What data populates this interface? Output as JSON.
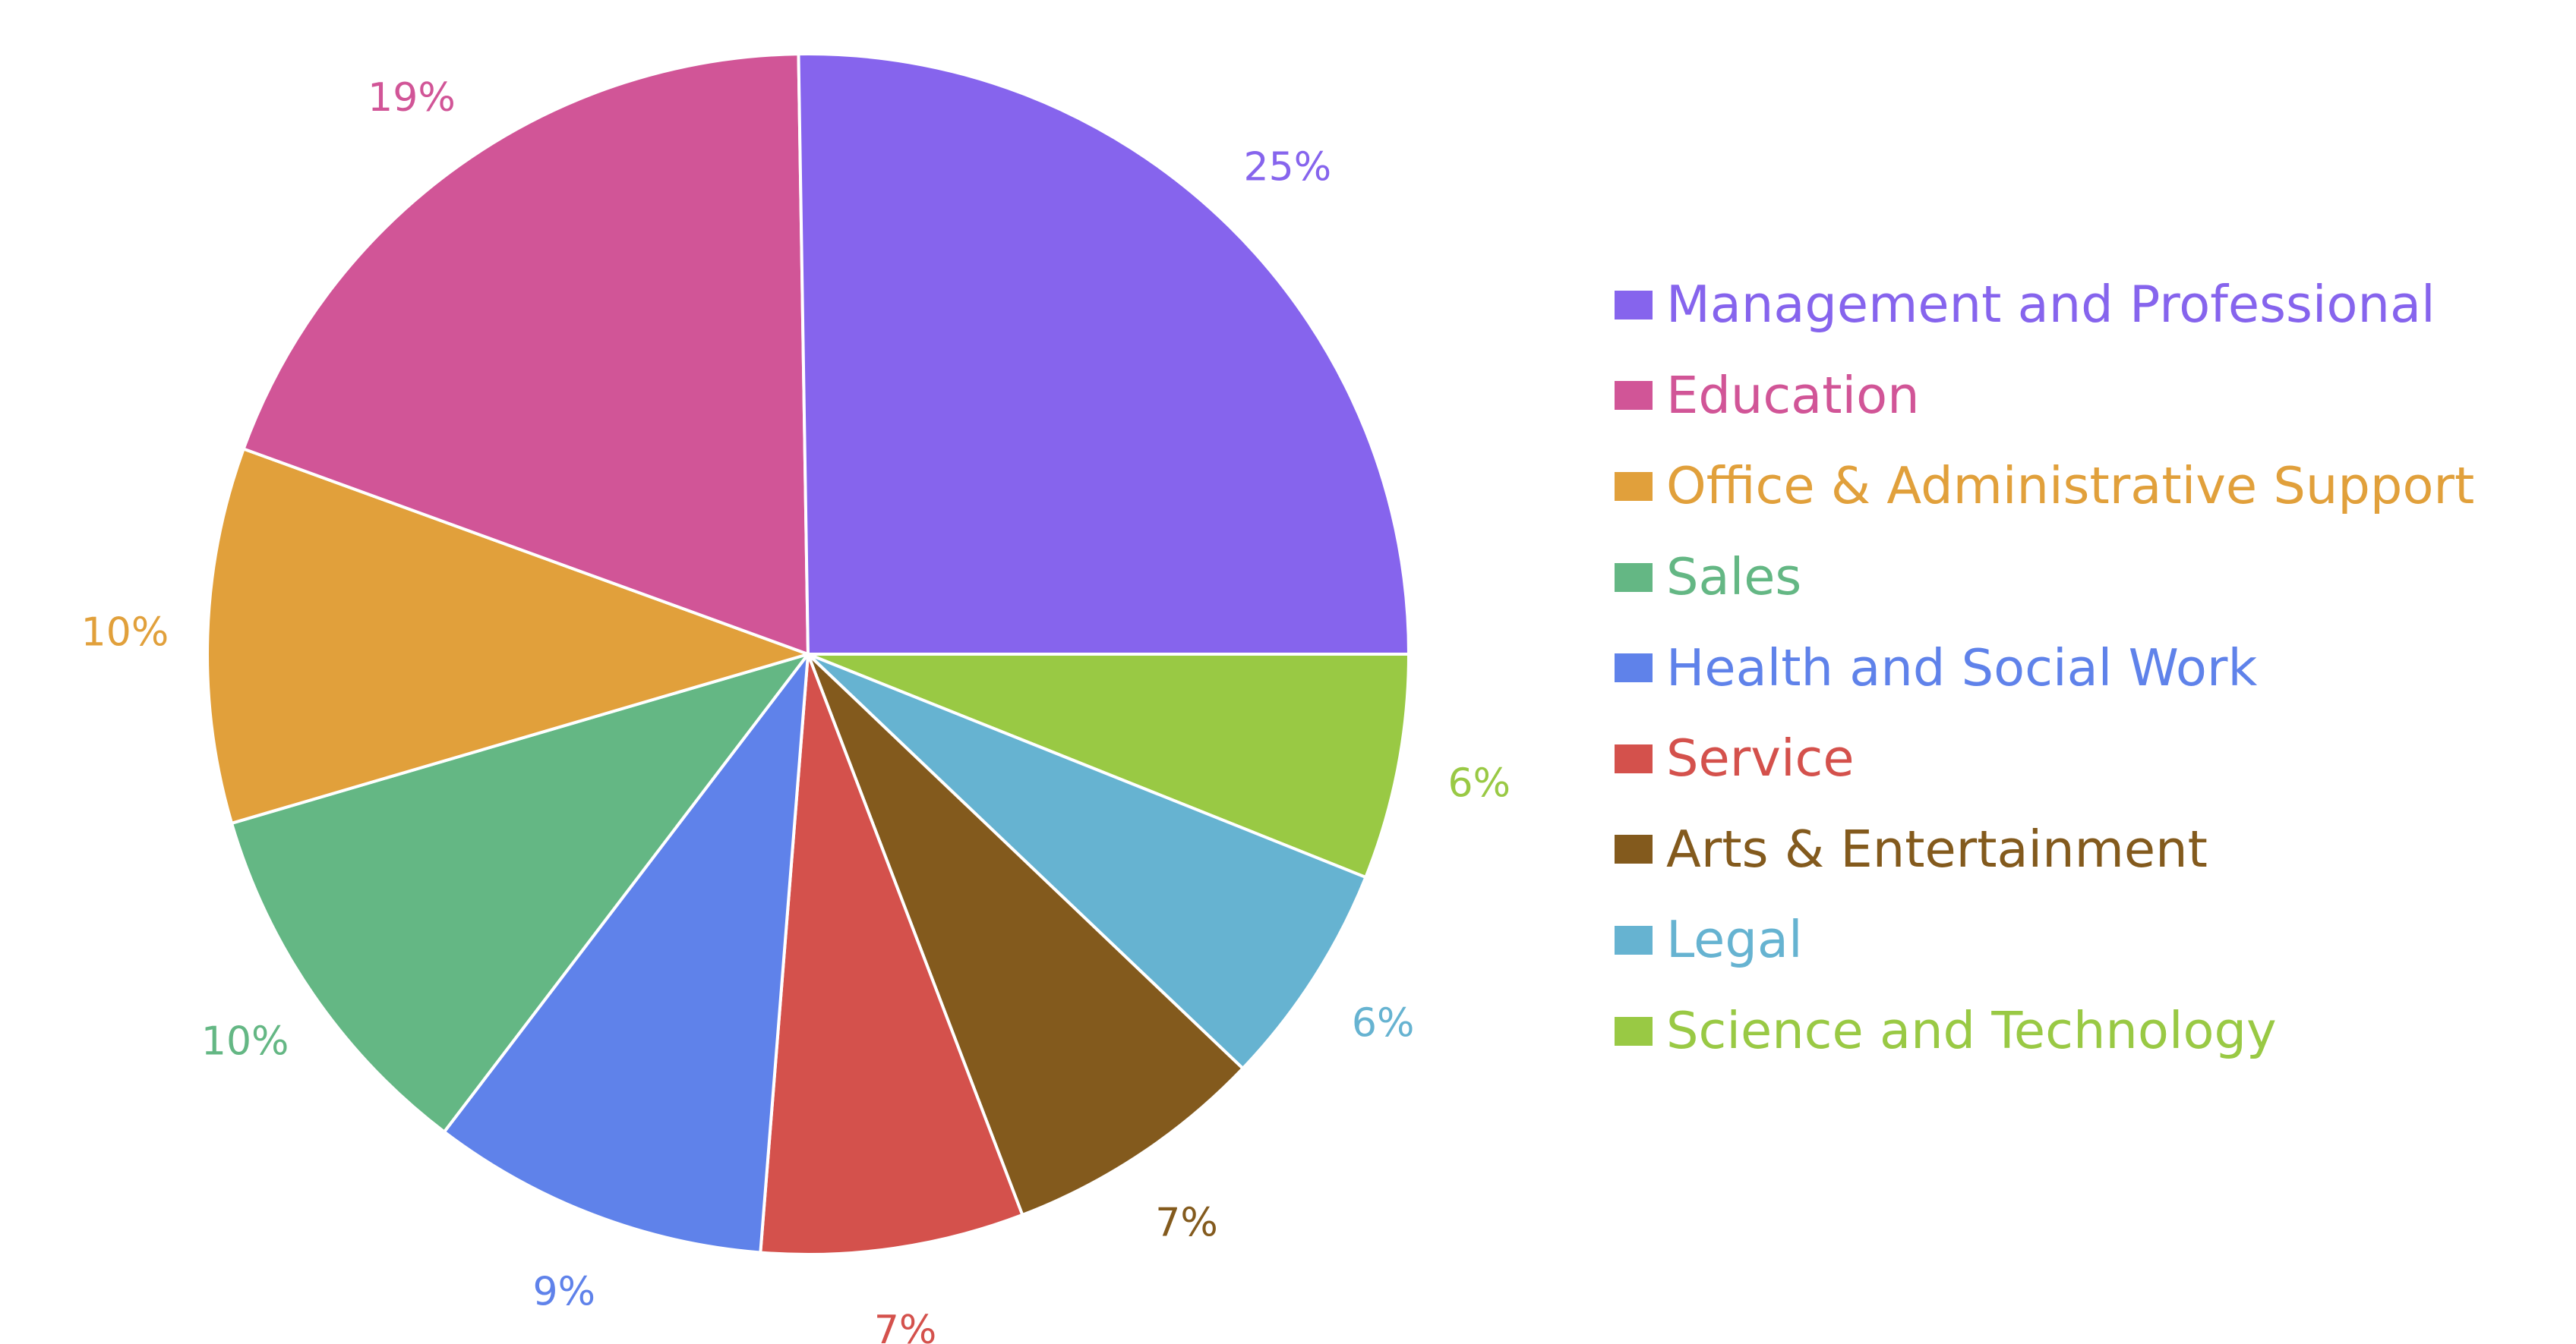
{
  "chart_data": {
    "type": "pie",
    "title": "",
    "legend_position": "right",
    "start": "3 o'clock, clockwise",
    "slices": [
      {
        "label": "Science and Technology",
        "value": 6,
        "display": "6%",
        "color": "#99c944"
      },
      {
        "label": "Legal",
        "value": 6,
        "display": "6%",
        "color": "#66b3d1"
      },
      {
        "label": "Arts & Entertainment",
        "value": 7,
        "display": "7%",
        "color": "#835a1d"
      },
      {
        "label": "Service",
        "value": 7,
        "display": "7%",
        "color": "#d4514c"
      },
      {
        "label": "Health and Social Work",
        "value": 9,
        "display": "9%",
        "color": "#5f82ea"
      },
      {
        "label": "Sales",
        "value": 10,
        "display": "10%",
        "color": "#64b784"
      },
      {
        "label": "Office & Administrative Support",
        "value": 10,
        "display": "10%",
        "color": "#e1a03b"
      },
      {
        "label": "Education",
        "value": 19,
        "display": "19%",
        "color": "#d15597"
      },
      {
        "label": "Management and Professional",
        "value": 25,
        "display": "25%",
        "color": "#8664ed"
      }
    ],
    "legend": [
      {
        "label": "Management and Professional",
        "color": "#8664ed"
      },
      {
        "label": "Education",
        "color": "#d15597"
      },
      {
        "label": "Office & Administrative Support",
        "color": "#e1a03b"
      },
      {
        "label": "Sales",
        "color": "#64b784"
      },
      {
        "label": "Health and Social Work",
        "color": "#5f82ea"
      },
      {
        "label": "Service",
        "color": "#d4514c"
      },
      {
        "label": "Arts & Entertainment",
        "color": "#835a1d"
      },
      {
        "label": "Legal",
        "color": "#66b3d1"
      },
      {
        "label": "Science and Technology",
        "color": "#99c944"
      }
    ]
  }
}
